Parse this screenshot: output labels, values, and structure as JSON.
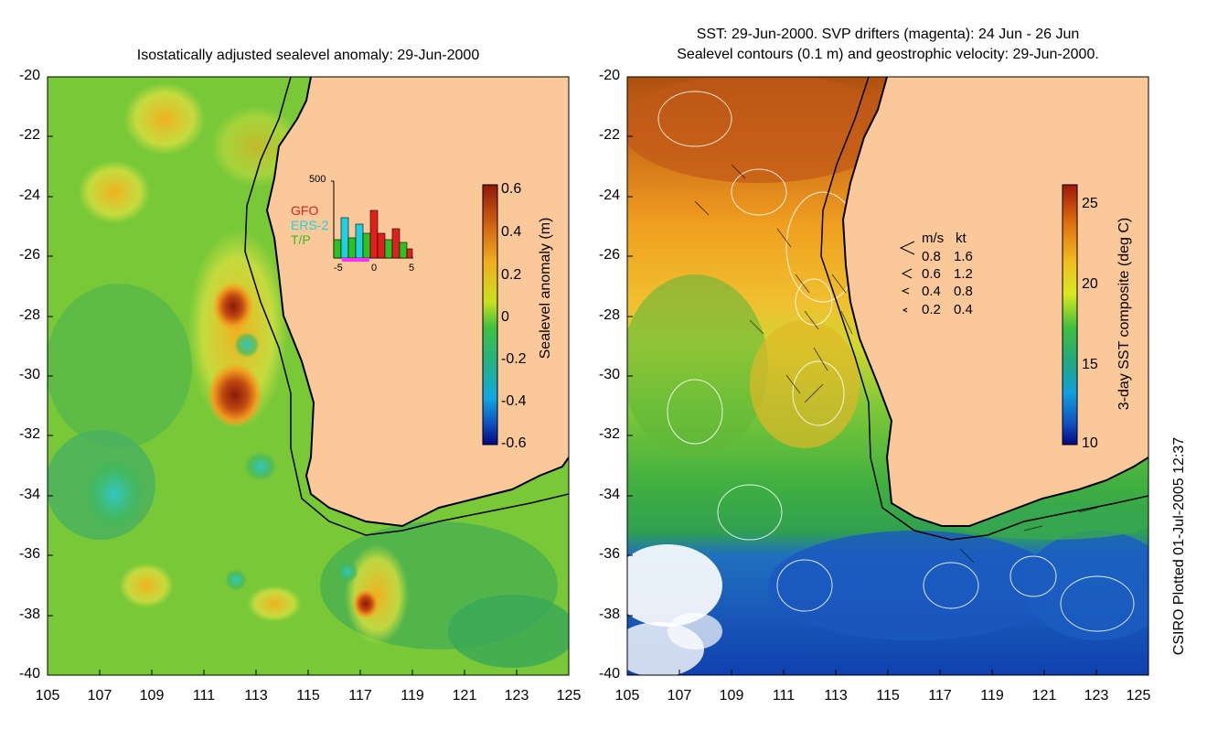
{
  "left_panel": {
    "title": "Isostatically adjusted sealevel anomaly: 29-Jun-2000",
    "colorbar_label": "Sealevel anomaly (m)",
    "colorbar_ticks": [
      "0.6",
      "0.4",
      "0.2",
      "0",
      "-0.2",
      "-0.4",
      "-0.6"
    ],
    "inset": {
      "ymax_label": "500",
      "legend": [
        "GFO",
        "ERS-2",
        "T/P"
      ],
      "legend_colors": [
        "#e0201a",
        "#20d0e0",
        "#30c020"
      ],
      "x_ticks": [
        "-5",
        "0",
        "5"
      ]
    }
  },
  "right_panel": {
    "title_line1": "SST: 29-Jun-2000. SVP drifters (magenta): 24 Jun - 26 Jun",
    "title_line2": "Sealevel contours (0.1 m) and geostrophic velocity: 29-Jun-2000.",
    "colorbar_label": "3-day SST composite (deg C)",
    "colorbar_ticks": [
      "25",
      "20",
      "15",
      "10"
    ],
    "vector_legend": {
      "header_ms": "m/s",
      "header_kt": "kt",
      "rows": [
        {
          "ms": "0.8",
          "kt": "1.6"
        },
        {
          "ms": "0.6",
          "kt": "1.2"
        },
        {
          "ms": "0.4",
          "kt": "0.8"
        },
        {
          "ms": "0.2",
          "kt": "0.4"
        }
      ]
    }
  },
  "axes": {
    "y_ticks": [
      "-20",
      "-22",
      "-24",
      "-26",
      "-28",
      "-30",
      "-32",
      "-34",
      "-36",
      "-38",
      "-40"
    ],
    "x_ticks": [
      "105",
      "107",
      "109",
      "111",
      "113",
      "115",
      "117",
      "119",
      "121",
      "123",
      "125"
    ]
  },
  "credit": "CSIRO Plotted 01-Jul-2005 12:37",
  "colors": {
    "land": "#fbc89a",
    "coast": "#000000"
  }
}
